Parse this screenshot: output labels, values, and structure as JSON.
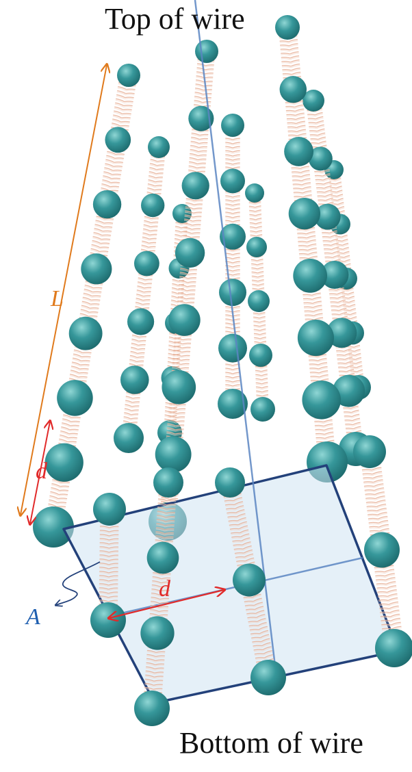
{
  "labels": {
    "top": "Top of wire",
    "bottom": "Bottom of wire",
    "length": "L",
    "spacing_vertical": "d",
    "spacing_horizontal": "d",
    "area": "A"
  },
  "colors": {
    "atom": "#2f8f92",
    "atom_highlight": "#7fd0cf",
    "spring": "#e9b7a0",
    "length_arrow": "#e07a1c",
    "spacing_arrow": "#e12a2a",
    "area_label": "#1f5fb0",
    "plane_fill": "#cfe3f3",
    "plane_edge": "#23417a"
  }
}
